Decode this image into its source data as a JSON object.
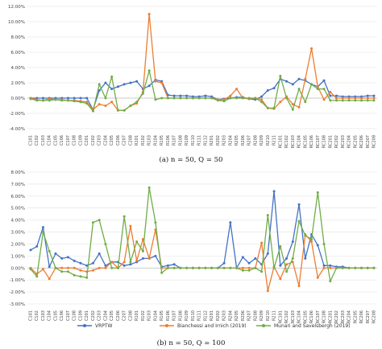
{
  "colors": {
    "VRPTW": "#4472C4",
    "Bianchessi": "#ED7D31",
    "Munari": "#70AD47",
    "grid": "#e0e0e0",
    "axis": "#bfbfbf"
  },
  "legend": [
    {
      "label": "VRPTW",
      "color": "#4472C4"
    },
    {
      "label": "Bianchessi and Irnich (2019)",
      "color": "#ED7D31"
    },
    {
      "label": "Munari and Savelsbergh (2019)",
      "color": "#70AD47"
    }
  ],
  "chart_data": [
    {
      "type": "line",
      "caption": "(a) n = 50, Q = 50",
      "ylim": [
        -4,
        12
      ],
      "yticks": [
        "-4.00%",
        "-2.00%",
        "0.00%",
        "2.00%",
        "4.00%",
        "6.00%",
        "8.00%",
        "10.00%",
        "12.00%"
      ],
      "grid": true,
      "categories": [
        "C101",
        "C102",
        "C103",
        "C104",
        "C105",
        "C106",
        "C107",
        "C108",
        "C109",
        "C201",
        "C202",
        "C203",
        "C204",
        "C205",
        "C206",
        "C207",
        "C208",
        "R101",
        "R102",
        "R103",
        "R104",
        "R105",
        "R106",
        "R107",
        "R108",
        "R109",
        "R110",
        "R111",
        "R112",
        "R201",
        "R202",
        "R203",
        "R204",
        "R205",
        "R206",
        "R207",
        "R208",
        "R209",
        "R210",
        "R211",
        "RC101",
        "RC102",
        "RC103",
        "RC104",
        "RC105",
        "RC106",
        "RC107",
        "RC108",
        "RC201",
        "RC202",
        "RC203",
        "RC204",
        "RC205",
        "RC206",
        "RC207",
        "RC208"
      ],
      "series": [
        {
          "name": "VRPTW",
          "color": "#4472C4",
          "values": [
            0,
            0,
            0,
            0,
            0,
            0,
            0,
            0,
            0,
            0,
            -1.5,
            1.0,
            2.0,
            1.2,
            1.5,
            1.8,
            2.0,
            2.2,
            1.2,
            1.6,
            2.4,
            2.2,
            0.4,
            0.3,
            0.3,
            0.3,
            0.2,
            0.2,
            0.3,
            0.2,
            -0.2,
            -0.1,
            0,
            0.1,
            0.1,
            -0.1,
            -0.2,
            0.2,
            1.0,
            1.3,
            2.5,
            2.2,
            1.8,
            2.5,
            2.3,
            1.8,
            1.5,
            2.3,
            0.3,
            0.3,
            0.2,
            0.2,
            0.2,
            0.2,
            0.3,
            0.3
          ]
        },
        {
          "name": "Bianchessi and Irnich (2019)",
          "color": "#ED7D31",
          "values": [
            0,
            -0.2,
            -0.3,
            -0.1,
            -0.2,
            -0.2,
            -0.3,
            -0.3,
            -0.4,
            -0.5,
            -1.5,
            -0.8,
            -1.0,
            -0.5,
            -1.6,
            -1.6,
            -1.0,
            -0.7,
            0.8,
            11.0,
            2.2,
            2.0,
            0,
            0,
            0,
            0,
            0,
            0,
            0,
            0,
            -0.2,
            -0.2,
            0.3,
            1.2,
            0,
            -0.1,
            0,
            -0.2,
            -1.3,
            -1.4,
            -0.5,
            0.2,
            -0.8,
            -1.2,
            2.5,
            6.5,
            1.5,
            -0.2,
            0.8,
            0,
            0,
            0,
            0,
            0,
            0,
            0
          ]
        },
        {
          "name": "Munari and Savelsbergh (2019)",
          "color": "#70AD47",
          "values": [
            -0.1,
            -0.3,
            -0.3,
            -0.3,
            -0.2,
            -0.3,
            -0.3,
            -0.4,
            -0.5,
            -0.7,
            -1.7,
            1.8,
            0,
            2.8,
            -1.6,
            -1.6,
            -1.0,
            -0.5,
            0.6,
            3.6,
            -0.2,
            0,
            0,
            0,
            0,
            0,
            0,
            0,
            0,
            0,
            -0.3,
            -0.4,
            0,
            0,
            0,
            0,
            0,
            -0.5,
            -1.3,
            -1.3,
            2.9,
            0,
            -1.5,
            1.2,
            -0.5,
            1.8,
            1.2,
            1.2,
            -0.3,
            -0.3,
            -0.3,
            -0.3,
            -0.3,
            -0.3,
            -0.3,
            -0.3
          ]
        }
      ]
    },
    {
      "type": "line",
      "caption": "(b) n = 50, Q = 100",
      "ylim": [
        -3,
        8
      ],
      "yticks": [
        "-3.00%",
        "-2.00%",
        "-1.00%",
        "0.00%",
        "1.00%",
        "2.00%",
        "3.00%",
        "4.00%",
        "5.00%",
        "6.00%",
        "7.00%",
        "8.00%"
      ],
      "grid": true,
      "categories": [
        "C101",
        "C102",
        "C103",
        "C104",
        "C105",
        "C106",
        "C107",
        "C108",
        "C109",
        "C201",
        "C202",
        "C203",
        "C204",
        "C205",
        "C206",
        "C207",
        "C208",
        "R101",
        "R102",
        "R103",
        "R104",
        "R105",
        "R106",
        "R107",
        "R108",
        "R109",
        "R110",
        "R111",
        "R112",
        "R201",
        "R202",
        "R203",
        "R204",
        "R205",
        "R206",
        "R207",
        "R208",
        "R209",
        "R210",
        "R211",
        "RC101",
        "RC102",
        "RC103",
        "RC104",
        "RC105",
        "RC106",
        "RC107",
        "RC108",
        "RC201",
        "RC202",
        "RC203",
        "RC204",
        "RC205",
        "RC206",
        "RC207",
        "RC208"
      ],
      "series": [
        {
          "name": "VRPTW",
          "color": "#4472C4",
          "values": [
            1.5,
            1.8,
            3.4,
            0.1,
            1.2,
            0.8,
            0.9,
            0.6,
            0.4,
            0.2,
            0.4,
            1.2,
            0.2,
            0.5,
            0.5,
            0.2,
            0.3,
            0.5,
            0.8,
            0.8,
            1.0,
            0.1,
            0.2,
            0.3,
            0,
            0,
            0,
            0,
            0,
            0,
            0,
            0.4,
            3.8,
            0,
            0.9,
            0.4,
            0.8,
            0.3,
            1.2,
            6.4,
            0.2,
            0.8,
            2.2,
            5.3,
            0.8,
            2.8,
            1.9,
            0.2,
            0.2,
            0.1,
            0.1,
            0,
            0,
            0,
            0,
            0
          ]
        },
        {
          "name": "Bianchessi and Irnich (2019)",
          "color": "#ED7D31",
          "values": [
            0,
            -0.5,
            -0.1,
            -0.9,
            0,
            0,
            0,
            0,
            -0.2,
            -0.3,
            -0.2,
            0,
            0,
            0.5,
            0,
            0.5,
            3.5,
            0.6,
            2.4,
            0.8,
            3.2,
            0,
            0,
            0,
            0,
            0,
            0,
            0,
            0,
            0,
            0,
            0,
            0,
            0,
            0,
            0,
            0,
            2.1,
            -1.9,
            0.1,
            -0.9,
            0.3,
            0.5,
            -1.5,
            2.8,
            2.2,
            -0.8,
            0,
            0,
            0,
            0,
            0,
            0,
            0,
            0,
            0
          ]
        },
        {
          "name": "Munari and Savelsbergh (2019)",
          "color": "#70AD47",
          "values": [
            -0.1,
            -0.7,
            3.0,
            1.4,
            0,
            -0.3,
            -0.3,
            -0.6,
            -0.7,
            -0.8,
            3.8,
            4.0,
            2.0,
            0,
            0,
            4.3,
            0.5,
            2.2,
            1.4,
            6.7,
            3.8,
            -0.4,
            0,
            0,
            0,
            0,
            0,
            0,
            0,
            0,
            0,
            0,
            0,
            0,
            -0.2,
            -0.2,
            0,
            -0.3,
            4.4,
            0,
            1.8,
            -0.3,
            0.8,
            3.9,
            2.7,
            2.4,
            6.3,
            2.0,
            -1.1,
            0,
            0,
            0,
            0,
            0,
            0,
            0
          ]
        }
      ]
    }
  ]
}
